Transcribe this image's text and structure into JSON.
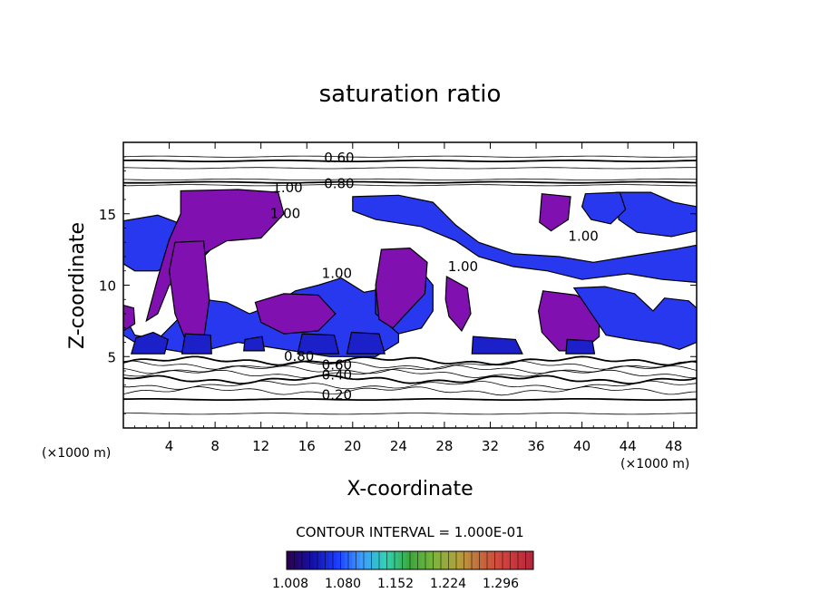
{
  "chart_data": {
    "type": "heatmap",
    "title": "saturation ratio",
    "xlabel": "X-coordinate",
    "ylabel": "Z-coordinate",
    "x_unit": "(×1000 m)",
    "x_range": [
      0,
      50
    ],
    "y_range": [
      0,
      20
    ],
    "x_ticks": [
      4,
      8,
      12,
      16,
      20,
      24,
      28,
      32,
      36,
      40,
      44,
      48
    ],
    "y_ticks": [
      5,
      10,
      15
    ],
    "contour_interval_text": "CONTOUR INTERVAL = 1.000E-01",
    "contour_labels": [
      {
        "text": "0.60",
        "x": 17.5,
        "y": 18.6
      },
      {
        "text": "0.80",
        "x": 17.5,
        "y": 16.8
      },
      {
        "text": "1.00",
        "x": 13.0,
        "y": 16.5
      },
      {
        "text": "1.00",
        "x": 12.8,
        "y": 14.7
      },
      {
        "text": "1.00",
        "x": 17.3,
        "y": 10.5
      },
      {
        "text": "1.00",
        "x": 28.3,
        "y": 11.0
      },
      {
        "text": "1.00",
        "x": 38.8,
        "y": 13.1
      },
      {
        "text": "0.80",
        "x": 14.0,
        "y": 4.7
      },
      {
        "text": "0.60",
        "x": 17.3,
        "y": 4.1
      },
      {
        "text": "0.40",
        "x": 17.3,
        "y": 3.4
      },
      {
        "text": "0.20",
        "x": 17.3,
        "y": 2.0
      }
    ],
    "isolines_y": [
      19.0,
      18.7,
      18.2,
      17.4,
      17.2,
      17.0,
      4.7,
      4.4,
      4.1,
      3.8,
      3.4,
      3.0,
      2.6,
      2.0,
      1.0
    ],
    "colorbar": {
      "ticks": [
        "1.008",
        "1.080",
        "1.152",
        "1.224",
        "1.296"
      ],
      "colors": [
        "#2a0055",
        "#1410a8",
        "#1a3cff",
        "#3c9cff",
        "#32d2b4",
        "#3ca83c",
        "#7cb43c",
        "#b4a03c",
        "#c8643c",
        "#d23c3c",
        "#b4283c"
      ]
    },
    "fill_colors": {
      "purple": "#8010b0",
      "blue": "#2838ee",
      "deep_blue": "#1c20c8"
    },
    "supersaturated_patches": [
      {
        "c": "blue",
        "pts": [
          [
            0,
            8
          ],
          [
            1,
            6.5
          ],
          [
            3,
            6.2
          ],
          [
            5,
            7.8
          ],
          [
            7,
            9
          ],
          [
            9,
            8.8
          ],
          [
            11,
            8
          ],
          [
            13,
            8.6
          ],
          [
            15,
            9.6
          ],
          [
            17,
            10
          ],
          [
            19,
            10.5
          ],
          [
            21,
            9.5
          ],
          [
            23,
            9.8
          ],
          [
            24,
            8.5
          ],
          [
            24,
            6
          ],
          [
            22,
            5
          ],
          [
            18,
            5
          ],
          [
            14,
            5.5
          ],
          [
            10,
            6
          ],
          [
            8,
            5.6
          ],
          [
            6,
            5.2
          ],
          [
            3,
            5.6
          ],
          [
            1,
            6
          ],
          [
            0,
            6.5
          ]
        ]
      },
      {
        "c": "blue",
        "pts": [
          [
            0,
            14.5
          ],
          [
            3,
            14.9
          ],
          [
            6,
            14
          ],
          [
            8,
            12.8
          ],
          [
            7,
            12
          ],
          [
            5,
            11.8
          ],
          [
            3,
            11
          ],
          [
            1,
            11
          ],
          [
            0,
            11.5
          ]
        ]
      },
      {
        "c": "blue",
        "pts": [
          [
            20,
            16.2
          ],
          [
            24,
            16.3
          ],
          [
            27,
            15.8
          ],
          [
            29,
            14.2
          ],
          [
            31,
            13
          ],
          [
            34,
            12.2
          ],
          [
            38,
            12
          ],
          [
            41,
            11.6
          ],
          [
            44,
            12
          ],
          [
            48,
            12.5
          ],
          [
            50,
            12.8
          ],
          [
            50,
            10.2
          ],
          [
            47,
            10.4
          ],
          [
            44,
            10.8
          ],
          [
            40,
            10.4
          ],
          [
            37,
            11
          ],
          [
            34,
            11.3
          ],
          [
            31,
            12
          ],
          [
            29,
            13.1
          ],
          [
            26,
            14.1
          ],
          [
            22,
            14.6
          ],
          [
            20,
            15.2
          ]
        ]
      },
      {
        "c": "blue",
        "pts": [
          [
            22,
            9.8
          ],
          [
            24,
            10.6
          ],
          [
            26,
            11
          ],
          [
            27,
            10
          ],
          [
            27,
            8.2
          ],
          [
            26,
            7
          ],
          [
            24,
            6.6
          ],
          [
            22,
            8
          ]
        ]
      },
      {
        "c": "purple",
        "pts": [
          [
            5,
            16.6
          ],
          [
            10,
            16.7
          ],
          [
            13.5,
            16.5
          ],
          [
            14,
            15
          ],
          [
            12,
            13.3
          ],
          [
            9,
            13.1
          ],
          [
            7,
            12.2
          ],
          [
            6,
            11
          ],
          [
            4,
            10
          ],
          [
            3,
            8
          ],
          [
            2,
            7.5
          ],
          [
            3,
            10.5
          ],
          [
            4,
            13.2
          ],
          [
            5,
            15
          ]
        ]
      },
      {
        "c": "purple",
        "pts": [
          [
            4.5,
            13
          ],
          [
            7,
            13.1
          ],
          [
            7.5,
            9
          ],
          [
            7,
            6.2
          ],
          [
            5.5,
            6
          ],
          [
            4.5,
            8
          ],
          [
            4,
            11
          ]
        ]
      },
      {
        "c": "purple",
        "pts": [
          [
            0,
            6.8
          ],
          [
            1,
            7.3
          ],
          [
            0.9,
            8.4
          ],
          [
            0,
            8.6
          ]
        ]
      },
      {
        "c": "purple",
        "pts": [
          [
            11.5,
            8.8
          ],
          [
            14,
            9.4
          ],
          [
            17,
            9.3
          ],
          [
            18.5,
            8
          ],
          [
            17,
            6.8
          ],
          [
            14,
            6.6
          ],
          [
            12,
            7.4
          ]
        ]
      },
      {
        "c": "purple",
        "pts": [
          [
            22.5,
            12.5
          ],
          [
            25,
            12.6
          ],
          [
            26.5,
            11.6
          ],
          [
            26.3,
            9.4
          ],
          [
            25,
            8.3
          ],
          [
            23.5,
            7
          ],
          [
            22.3,
            7.6
          ],
          [
            22,
            10
          ]
        ]
      },
      {
        "c": "purple",
        "pts": [
          [
            28.2,
            10.6
          ],
          [
            30,
            9.8
          ],
          [
            30.3,
            8
          ],
          [
            29.5,
            6.8
          ],
          [
            28.4,
            7.8
          ],
          [
            28.1,
            9
          ]
        ]
      },
      {
        "c": "purple",
        "pts": [
          [
            36.6,
            9.6
          ],
          [
            39.5,
            9.3
          ],
          [
            41.5,
            8.4
          ],
          [
            41.5,
            6.4
          ],
          [
            40,
            5.4
          ],
          [
            38,
            5.4
          ],
          [
            36.5,
            6.7
          ],
          [
            36.2,
            8.2
          ]
        ]
      },
      {
        "c": "purple",
        "pts": [
          [
            36.5,
            16.4
          ],
          [
            39,
            16.2
          ],
          [
            38.8,
            14.6
          ],
          [
            37.3,
            13.8
          ],
          [
            36.3,
            14.4
          ]
        ]
      },
      {
        "c": "purple",
        "pts": [
          [
            45,
            16.4
          ],
          [
            47.5,
            15.6
          ],
          [
            47,
            14.3
          ],
          [
            45.2,
            13.9
          ],
          [
            44.6,
            15
          ]
        ]
      },
      {
        "c": "blue",
        "pts": [
          [
            43,
            16.5
          ],
          [
            46,
            16.5
          ],
          [
            48,
            15.8
          ],
          [
            50,
            15.5
          ],
          [
            50,
            13.8
          ],
          [
            47.8,
            13.4
          ],
          [
            44.8,
            13.7
          ],
          [
            43.2,
            14.6
          ]
        ]
      },
      {
        "c": "blue",
        "pts": [
          [
            40.3,
            16.4
          ],
          [
            43.3,
            16.5
          ],
          [
            43.8,
            15.3
          ],
          [
            42.5,
            14.3
          ],
          [
            40.8,
            14.6
          ],
          [
            40,
            15.5
          ]
        ]
      },
      {
        "c": "blue",
        "pts": [
          [
            39.3,
            9.8
          ],
          [
            42,
            9.9
          ],
          [
            44.6,
            9.4
          ],
          [
            46.2,
            8.2
          ],
          [
            47.2,
            9.1
          ],
          [
            49.3,
            8.9
          ],
          [
            50,
            8.4
          ],
          [
            50,
            6
          ],
          [
            48.5,
            5.5
          ],
          [
            46.8,
            5.9
          ],
          [
            44.2,
            6.2
          ],
          [
            42.1,
            6.5
          ]
        ]
      },
      {
        "c": "deep_blue",
        "pts": [
          [
            0.7,
            5.2
          ],
          [
            3.6,
            5.2
          ],
          [
            3.9,
            6.2
          ],
          [
            2.6,
            6.7
          ],
          [
            1.1,
            6.3
          ]
        ]
      },
      {
        "c": "deep_blue",
        "pts": [
          [
            5.1,
            5.2
          ],
          [
            7.7,
            5.2
          ],
          [
            7.6,
            6.5
          ],
          [
            5.4,
            6.6
          ]
        ]
      },
      {
        "c": "deep_blue",
        "pts": [
          [
            10.5,
            5.4
          ],
          [
            12.3,
            5.4
          ],
          [
            12.1,
            6.4
          ],
          [
            10.6,
            6.2
          ]
        ]
      },
      {
        "c": "deep_blue",
        "pts": [
          [
            15.2,
            5.2
          ],
          [
            18.8,
            5.2
          ],
          [
            18.4,
            6.5
          ],
          [
            15.6,
            6.6
          ]
        ]
      },
      {
        "c": "deep_blue",
        "pts": [
          [
            19.5,
            5.2
          ],
          [
            22.8,
            5.2
          ],
          [
            22.3,
            6.6
          ],
          [
            19.9,
            6.7
          ]
        ]
      },
      {
        "c": "deep_blue",
        "pts": [
          [
            30.4,
            5.2
          ],
          [
            34.8,
            5.2
          ],
          [
            34.2,
            6.2
          ],
          [
            30.5,
            6.4
          ]
        ]
      },
      {
        "c": "deep_blue",
        "pts": [
          [
            38.6,
            5.2
          ],
          [
            41.1,
            5.2
          ],
          [
            40.9,
            6.1
          ],
          [
            38.7,
            6.2
          ]
        ]
      }
    ]
  }
}
